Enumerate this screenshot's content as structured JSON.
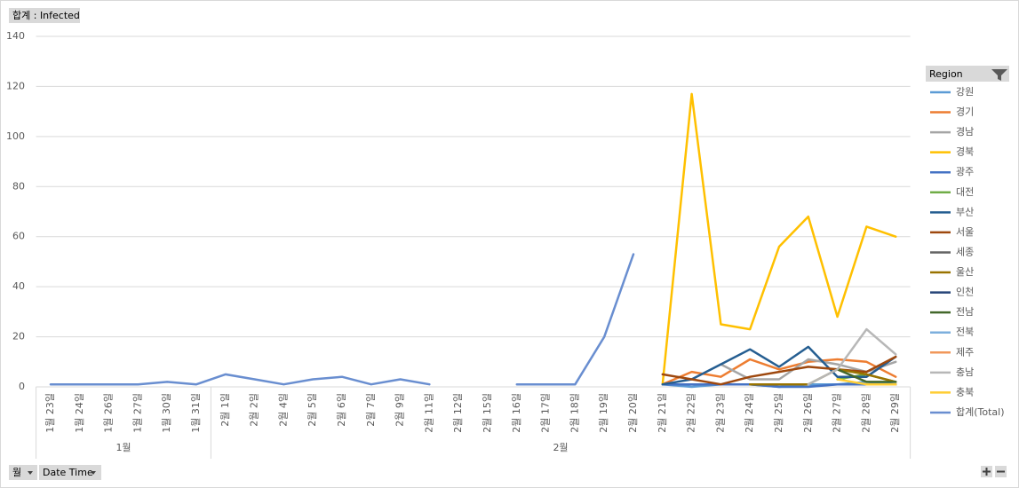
{
  "chart_data": {
    "type": "line",
    "categories": [
      "1월 23일",
      "1월 24일",
      "1월 26일",
      "1월 27일",
      "1월 30일",
      "1월 31일",
      "2월 1일",
      "2월 2일",
      "2월 4일",
      "2월 5일",
      "2월 6일",
      "2월 7일",
      "2월 9일",
      "2월 11일",
      "2월 12일",
      "2월 15일",
      "2월 16일",
      "2월 17일",
      "2월 18일",
      "2월 19일",
      "2월 20일",
      "2월 21일",
      "2월 22일",
      "2월 23일",
      "2월 24일",
      "2월 25일",
      "2월 26일",
      "2월 27일",
      "2월 28일",
      "2월 29일"
    ],
    "groups": [
      "1월",
      "2월"
    ],
    "ylim": [
      0,
      140
    ],
    "yticks": [
      0,
      20,
      40,
      60,
      80,
      100,
      120,
      140
    ],
    "grid": true,
    "legend_title": "Region",
    "legend": "right",
    "series": [
      {
        "name": "강원",
        "color": "#5b9bd5",
        "values": [
          null,
          null,
          null,
          null,
          null,
          null,
          null,
          null,
          null,
          null,
          null,
          null,
          null,
          null,
          null,
          null,
          null,
          null,
          null,
          null,
          null,
          1,
          0,
          1,
          1,
          0,
          1,
          1,
          2,
          1
        ]
      },
      {
        "name": "경기",
        "color": "#ed7d31",
        "values": [
          null,
          null,
          null,
          null,
          null,
          null,
          null,
          null,
          null,
          null,
          null,
          null,
          null,
          null,
          null,
          null,
          null,
          null,
          null,
          null,
          null,
          1,
          6,
          4,
          11,
          7,
          10,
          11,
          10,
          4
        ]
      },
      {
        "name": "경남",
        "color": "#a5a5a5",
        "values": [
          null,
          null,
          null,
          null,
          null,
          null,
          null,
          null,
          null,
          null,
          null,
          null,
          null,
          null,
          null,
          null,
          null,
          null,
          null,
          null,
          null,
          null,
          null,
          9,
          3,
          3,
          11,
          9,
          6,
          10
        ]
      },
      {
        "name": "경북",
        "color": "#ffc000",
        "values": [
          null,
          null,
          null,
          null,
          null,
          null,
          null,
          null,
          null,
          null,
          null,
          null,
          null,
          null,
          null,
          null,
          null,
          null,
          null,
          null,
          null,
          1,
          117,
          25,
          23,
          56,
          68,
          28,
          64,
          60
        ]
      },
      {
        "name": "광주",
        "color": "#4472c4",
        "values": [
          null,
          null,
          null,
          null,
          null,
          null,
          null,
          null,
          null,
          null,
          null,
          null,
          null,
          null,
          null,
          null,
          null,
          null,
          null,
          null,
          null,
          1,
          1,
          1,
          1,
          0,
          0,
          1,
          1,
          1
        ]
      },
      {
        "name": "대전",
        "color": "#70ad47",
        "values": [
          null,
          null,
          null,
          null,
          null,
          null,
          null,
          null,
          null,
          null,
          null,
          null,
          null,
          null,
          null,
          null,
          null,
          null,
          null,
          null,
          null,
          null,
          null,
          null,
          null,
          null,
          null,
          3,
          5,
          2
        ]
      },
      {
        "name": "부산",
        "color": "#255e91",
        "values": [
          null,
          null,
          null,
          null,
          null,
          null,
          null,
          null,
          null,
          null,
          null,
          null,
          null,
          null,
          null,
          null,
          null,
          null,
          null,
          null,
          null,
          1,
          3,
          9,
          15,
          8,
          16,
          4,
          4,
          12
        ]
      },
      {
        "name": "서울",
        "color": "#9e480e",
        "values": [
          null,
          null,
          null,
          null,
          null,
          null,
          null,
          null,
          null,
          null,
          null,
          null,
          null,
          null,
          null,
          null,
          null,
          null,
          null,
          null,
          null,
          5,
          3,
          1,
          4,
          6,
          8,
          7,
          6,
          12
        ]
      },
      {
        "name": "세종",
        "color": "#636363",
        "values": [
          null,
          null,
          null,
          null,
          null,
          null,
          null,
          null,
          null,
          null,
          null,
          null,
          null,
          null,
          null,
          null,
          null,
          null,
          null,
          null,
          null,
          null,
          null,
          null,
          null,
          null,
          null,
          null,
          1,
          1
        ]
      },
      {
        "name": "울산",
        "color": "#997300",
        "values": [
          null,
          null,
          null,
          null,
          null,
          null,
          null,
          null,
          null,
          null,
          null,
          null,
          null,
          null,
          null,
          null,
          null,
          null,
          null,
          null,
          null,
          null,
          null,
          null,
          1,
          1,
          1,
          7,
          5,
          2
        ]
      },
      {
        "name": "인천",
        "color": "#264478",
        "values": [
          null,
          null,
          null,
          null,
          null,
          null,
          null,
          null,
          null,
          null,
          null,
          null,
          null,
          null,
          null,
          null,
          null,
          null,
          null,
          null,
          null,
          null,
          null,
          null,
          null,
          null,
          null,
          null,
          1,
          1
        ]
      },
      {
        "name": "전남",
        "color": "#43682b",
        "values": [
          null,
          null,
          null,
          null,
          null,
          null,
          null,
          null,
          null,
          null,
          null,
          null,
          null,
          null,
          null,
          null,
          null,
          null,
          null,
          null,
          null,
          null,
          null,
          null,
          null,
          null,
          null,
          7,
          2,
          2
        ]
      },
      {
        "name": "전북",
        "color": "#7cafdd",
        "values": [
          null,
          null,
          null,
          null,
          null,
          null,
          null,
          null,
          null,
          null,
          null,
          null,
          null,
          null,
          null,
          null,
          null,
          null,
          null,
          null,
          null,
          null,
          null,
          null,
          null,
          null,
          null,
          null,
          1,
          1
        ]
      },
      {
        "name": "제주",
        "color": "#f1975a",
        "values": [
          null,
          null,
          null,
          null,
          null,
          null,
          null,
          null,
          null,
          null,
          null,
          null,
          null,
          null,
          null,
          null,
          null,
          null,
          null,
          null,
          null,
          null,
          null,
          null,
          null,
          null,
          null,
          null,
          1,
          1
        ]
      },
      {
        "name": "충남",
        "color": "#b7b7b7",
        "values": [
          null,
          null,
          null,
          null,
          null,
          null,
          null,
          null,
          null,
          null,
          null,
          null,
          null,
          null,
          null,
          null,
          null,
          null,
          null,
          null,
          null,
          null,
          null,
          null,
          null,
          null,
          1,
          7,
          23,
          13
        ]
      },
      {
        "name": "충북",
        "color": "#ffcd33",
        "values": [
          null,
          null,
          null,
          null,
          null,
          null,
          null,
          null,
          null,
          null,
          null,
          null,
          null,
          null,
          null,
          null,
          null,
          null,
          null,
          null,
          null,
          null,
          null,
          null,
          null,
          null,
          null,
          3,
          1,
          1
        ]
      },
      {
        "name": "합계(Total)",
        "color": "#698ed0",
        "values": [
          1,
          1,
          1,
          1,
          2,
          1,
          5,
          3,
          1,
          3,
          4,
          1,
          3,
          1,
          null,
          null,
          1,
          1,
          1,
          20,
          53,
          null,
          null,
          null,
          null,
          null,
          null,
          null,
          null,
          null
        ]
      }
    ]
  },
  "pivot_buttons": {
    "value_field": "합계 : Infected",
    "axis_fields": [
      "월",
      "Date Time"
    ]
  }
}
